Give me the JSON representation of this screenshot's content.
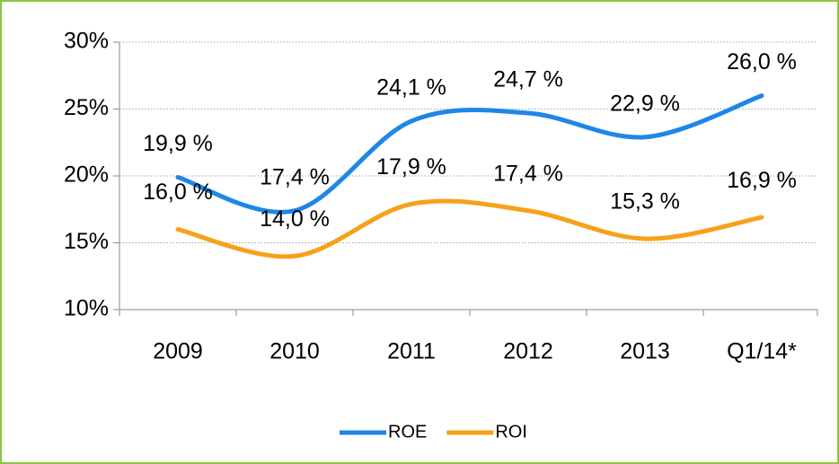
{
  "chart_data": {
    "type": "line",
    "categories": [
      "2009",
      "2010",
      "2011",
      "2012",
      "2013",
      "Q1/14*"
    ],
    "series": [
      {
        "name": "ROE",
        "color": "#1f86e8",
        "values": [
          19.9,
          17.4,
          24.1,
          24.7,
          22.9,
          26.0
        ],
        "value_labels": [
          "19,9 %",
          "17,4 %",
          "24,1 %",
          "24,7 %",
          "22,9 %",
          "26,0 %"
        ]
      },
      {
        "name": "ROI",
        "color": "#f7a11a",
        "values": [
          16.0,
          14.0,
          17.9,
          17.4,
          15.3,
          16.9
        ],
        "value_labels": [
          "16,0 %",
          "14,0 %",
          "17,9 %",
          "17,4 %",
          "15,3 %",
          "16,9 %"
        ]
      }
    ],
    "ylim": [
      10,
      30
    ],
    "yticks": [
      {
        "value": 10,
        "label": "10%"
      },
      {
        "value": 15,
        "label": "15%"
      },
      {
        "value": 20,
        "label": "20%"
      },
      {
        "value": 25,
        "label": "25%"
      },
      {
        "value": 30,
        "label": "30%"
      }
    ],
    "grid": true,
    "smooth": true,
    "legend": "bottom"
  }
}
